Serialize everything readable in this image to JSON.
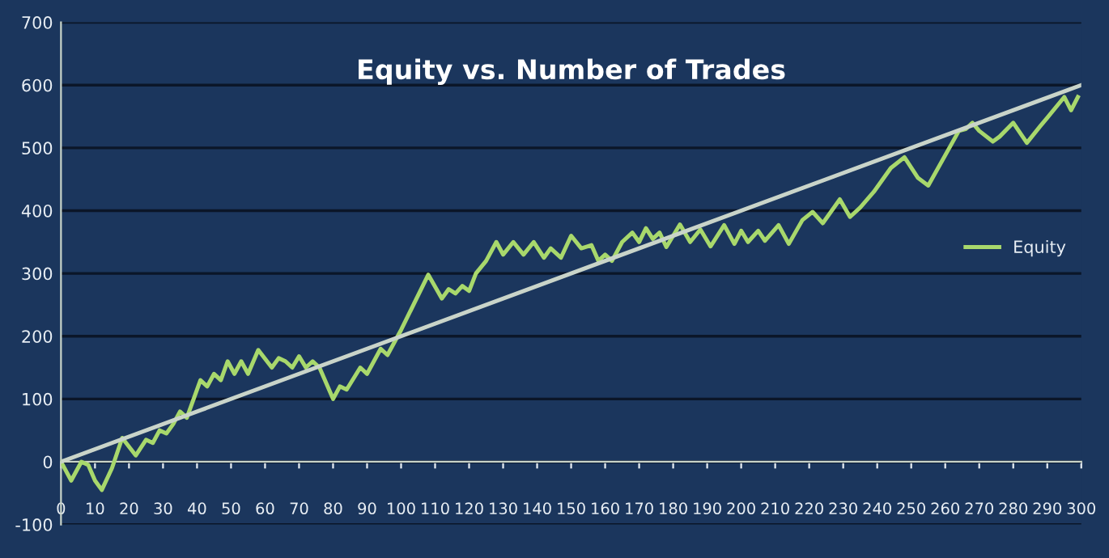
{
  "chart_data": {
    "type": "line",
    "title": "Equity vs. Number of Trades",
    "series": [
      {
        "name": "Equity",
        "color": "#a8d86c",
        "x": [
          0,
          3,
          6,
          8,
          10,
          12,
          15,
          18,
          22,
          25,
          27,
          29,
          31,
          33,
          35,
          37,
          41,
          43,
          45,
          47,
          49,
          51,
          53,
          55,
          58,
          62,
          64,
          66,
          68,
          70,
          72,
          74,
          76,
          80,
          82,
          84,
          88,
          90,
          94,
          96,
          100,
          108,
          112,
          114,
          116,
          118,
          120,
          122,
          125,
          128,
          130,
          133,
          136,
          139,
          142,
          144,
          147,
          150,
          153,
          156,
          158,
          160,
          162,
          165,
          168,
          170,
          172,
          174,
          176,
          178,
          182,
          185,
          188,
          191,
          195,
          198,
          200,
          202,
          205,
          207,
          211,
          214,
          218,
          221,
          224,
          229,
          232,
          235,
          239,
          244,
          248,
          252,
          255,
          264,
          266,
          268,
          270,
          274,
          276,
          280,
          284,
          288,
          290,
          295,
          297,
          299
        ],
        "values": [
          0,
          -30,
          0,
          -5,
          -30,
          -45,
          -10,
          38,
          10,
          35,
          30,
          50,
          45,
          60,
          80,
          70,
          130,
          120,
          140,
          130,
          160,
          140,
          160,
          140,
          178,
          150,
          165,
          160,
          150,
          168,
          150,
          160,
          150,
          100,
          120,
          115,
          150,
          140,
          180,
          170,
          210,
          298,
          260,
          275,
          268,
          280,
          272,
          300,
          320,
          350,
          330,
          350,
          330,
          350,
          325,
          340,
          325,
          360,
          340,
          345,
          320,
          330,
          320,
          350,
          365,
          350,
          372,
          355,
          365,
          342,
          378,
          350,
          370,
          343,
          377,
          347,
          368,
          350,
          368,
          352,
          377,
          347,
          385,
          398,
          380,
          418,
          390,
          405,
          430,
          468,
          485,
          452,
          440,
          527,
          530,
          540,
          527,
          510,
          518,
          540,
          508,
          535,
          548,
          581,
          560,
          581
        ]
      },
      {
        "color": "#c9d4c9",
        "x": [
          0,
          300
        ],
        "values": [
          0,
          600
        ]
      }
    ],
    "xlim": [
      0,
      300
    ],
    "ylim": [
      -100,
      700
    ],
    "xticks": [
      0,
      10,
      20,
      30,
      40,
      50,
      60,
      70,
      80,
      90,
      100,
      110,
      120,
      130,
      140,
      150,
      160,
      170,
      180,
      190,
      200,
      210,
      220,
      230,
      240,
      250,
      260,
      270,
      280,
      290,
      300
    ],
    "yticks": [
      -100,
      0,
      100,
      200,
      300,
      400,
      500,
      600,
      700
    ],
    "grid": "y",
    "legend": "right",
    "marker": "none",
    "line_style": "solid"
  }
}
